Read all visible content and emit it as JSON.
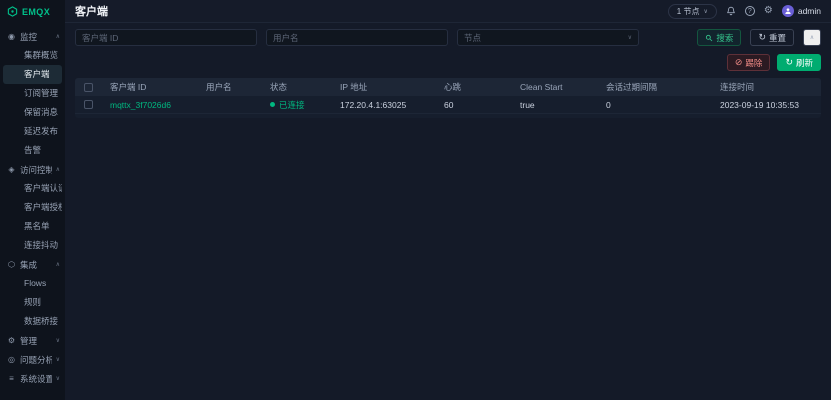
{
  "brand": {
    "name": "EMQX"
  },
  "colors": {
    "primary": "#00ac70",
    "danger": "#ef8a85",
    "avatar": "#6a5fd6",
    "link": "#00b880"
  },
  "header": {
    "title": "客户端",
    "nodes_selector": "1 节点",
    "user_name": "admin"
  },
  "sidebar": {
    "groups": [
      {
        "id": "monitoring",
        "label": "监控",
        "icon": "gauge-icon",
        "glyph": "◉",
        "expanded": true,
        "items": [
          {
            "id": "cluster-overview",
            "label": "集群概览"
          },
          {
            "id": "clients",
            "label": "客户端",
            "active": true
          },
          {
            "id": "subscriptions",
            "label": "订阅管理"
          },
          {
            "id": "retained-messages",
            "label": "保留消息"
          },
          {
            "id": "delayed-publish",
            "label": "延迟发布"
          },
          {
            "id": "alarms",
            "label": "告警"
          }
        ]
      },
      {
        "id": "access-control",
        "label": "访问控制",
        "icon": "shield-icon",
        "glyph": "◈",
        "expanded": true,
        "items": [
          {
            "id": "authentication",
            "label": "客户端认证"
          },
          {
            "id": "authorization",
            "label": "客户端授权"
          },
          {
            "id": "banned-clients",
            "label": "黑名单"
          },
          {
            "id": "flapping-detect",
            "label": "连接抖动"
          }
        ]
      },
      {
        "id": "integration",
        "label": "集成",
        "icon": "plug-icon",
        "glyph": "⬡",
        "expanded": true,
        "items": [
          {
            "id": "flows",
            "label": "Flows"
          },
          {
            "id": "rules",
            "label": "规则"
          },
          {
            "id": "data-bridges",
            "label": "数据桥接"
          }
        ]
      },
      {
        "id": "management",
        "label": "管理",
        "icon": "gear-icon",
        "glyph": "⚙",
        "expanded": false,
        "items": []
      },
      {
        "id": "diagnose",
        "label": "问题分析",
        "icon": "diagnose-icon",
        "glyph": "◎",
        "expanded": false,
        "items": []
      },
      {
        "id": "system",
        "label": "系统设置",
        "icon": "menu-icon",
        "glyph": "≡",
        "expanded": false,
        "items": []
      }
    ]
  },
  "filters": {
    "client_id_placeholder": "客户端 ID",
    "username_placeholder": "用户名",
    "node_placeholder": "节点",
    "search_label": "搜索",
    "reset_label": "重置"
  },
  "toolbar": {
    "kick_label": "踢除",
    "refresh_label": "刷新"
  },
  "table": {
    "columns": [
      "客户端 ID",
      "用户名",
      "状态",
      "IP 地址",
      "心跳",
      "Clean Start",
      "会话过期间隔",
      "连接时间"
    ],
    "rows": [
      {
        "client_id": "mqttx_3f7026d6",
        "username": "",
        "status": "已连接",
        "ip": "172.20.4.1:63025",
        "keepalive": "60",
        "clean_start": "true",
        "session_expiry": "0",
        "connected_at": "2023-09-19 10:35:53"
      }
    ]
  }
}
